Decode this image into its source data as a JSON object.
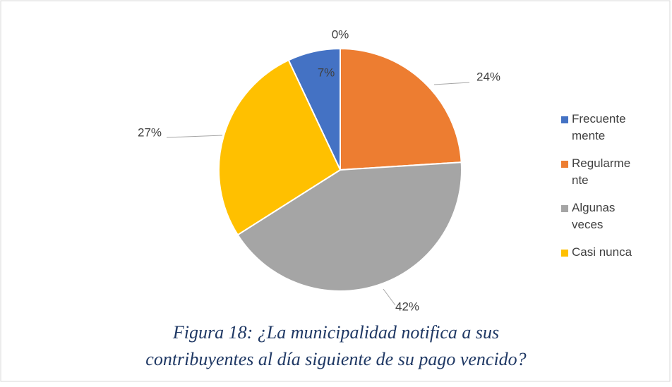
{
  "chart_data": {
    "type": "pie",
    "categories": [
      "Frecuentemente",
      null,
      "Regularmente",
      "Algunas veces",
      "Casi nunca"
    ],
    "values": [
      7,
      0,
      24,
      42,
      27
    ],
    "value_labels": [
      "7%",
      "0%",
      "24%",
      "42%",
      "27%"
    ],
    "colors": [
      "#4472c4",
      "#5b9bd5",
      "#ed7d31",
      "#a5a5a5",
      "#ffc000"
    ],
    "start_angle": 334.8,
    "legend": "right",
    "caption": [
      "Figura 18: ¿La municipalidad notifica a sus",
      "contribuyentes al día siguiente de su pago vencido?"
    ]
  }
}
